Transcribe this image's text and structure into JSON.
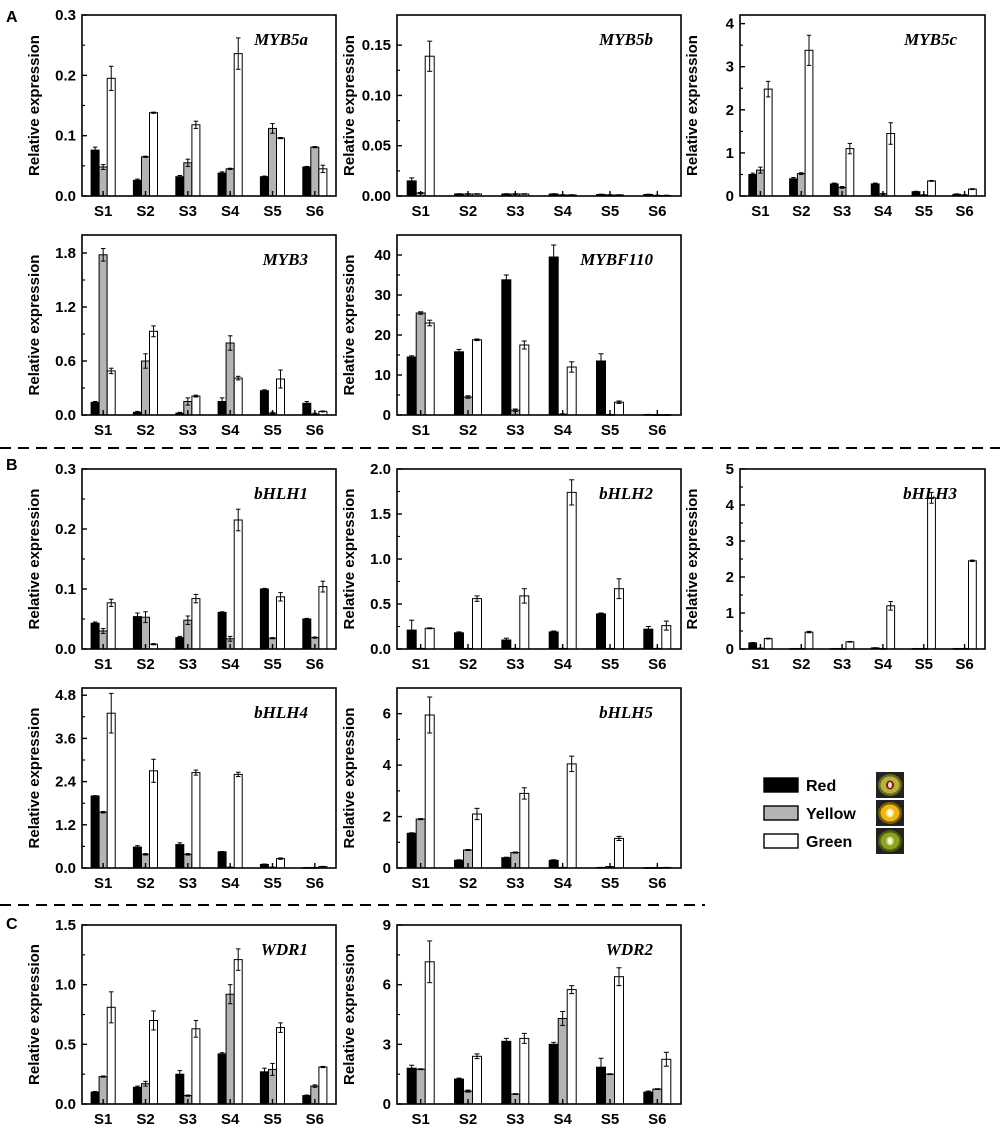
{
  "panel_labels": [
    "A",
    "B",
    "C"
  ],
  "y_axis_label": "Relative expression",
  "colors": {
    "red": "#000000",
    "yellow": "#b4b4b4",
    "green": "#ffffff",
    "axis": "#000000"
  },
  "legend": {
    "items": [
      {
        "label": "Red",
        "color": "#000000",
        "fruit_icon": "red-kiwi-slice-icon"
      },
      {
        "label": "Yellow",
        "color": "#b4b4b4",
        "fruit_icon": "yellow-kiwi-slice-icon"
      },
      {
        "label": "Green",
        "color": "#ffffff",
        "fruit_icon": "green-kiwi-slice-icon"
      }
    ]
  },
  "chart_data": [
    {
      "type": "bar",
      "title": "MYB5a",
      "categories": [
        "S1",
        "S2",
        "S3",
        "S4",
        "S5",
        "S6"
      ],
      "ylabel": "Relative expression",
      "ylim": [
        0,
        0.3
      ],
      "yticks": [
        0,
        0.1,
        0.2,
        0.3
      ],
      "ytick_labels": [
        "0.0",
        "0.1",
        "0.2",
        "0.3"
      ],
      "series": [
        {
          "name": "Red",
          "values": [
            0.076,
            0.026,
            0.032,
            0.038,
            0.032,
            0.048
          ],
          "errors": [
            0.005,
            0.002,
            0.002,
            0.002,
            0.001,
            0.001
          ]
        },
        {
          "name": "Yellow",
          "values": [
            0.048,
            0.065,
            0.055,
            0.045,
            0.112,
            0.081
          ],
          "errors": [
            0.004,
            0.001,
            0.006,
            0.001,
            0.008,
            0.001
          ]
        },
        {
          "name": "Green",
          "values": [
            0.195,
            0.138,
            0.118,
            0.236,
            0.096,
            0.045
          ],
          "errors": [
            0.02,
            0.001,
            0.006,
            0.026,
            0.001,
            0.006
          ]
        }
      ]
    },
    {
      "type": "bar",
      "title": "MYB5b",
      "categories": [
        "S1",
        "S2",
        "S3",
        "S4",
        "S5",
        "S6"
      ],
      "ylabel": "Relative expression",
      "ylim": [
        0,
        0.18
      ],
      "yticks": [
        0,
        0.05,
        0.1,
        0.15
      ],
      "ytick_labels": [
        "0.00",
        "0.05",
        "0.10",
        "0.15"
      ],
      "series": [
        {
          "name": "Red",
          "values": [
            0.015,
            0.002,
            0.002,
            0.002,
            0.0015,
            0.0015
          ],
          "errors": [
            0.003,
            0.0003,
            0.0003,
            0.0003,
            0.0003,
            0.0003
          ]
        },
        {
          "name": "Yellow",
          "values": [
            0.003,
            0.002,
            0.002,
            0.001,
            0.001,
            0.0005
          ],
          "errors": [
            0.0005,
            0.0003,
            0.0003,
            0.0003,
            0.0003,
            0.0003
          ]
        },
        {
          "name": "Green",
          "values": [
            0.139,
            0.002,
            0.002,
            0.001,
            0.001,
            0.0005
          ],
          "errors": [
            0.015,
            0.0003,
            0.0003,
            0.0003,
            0.0003,
            0.0003
          ]
        }
      ]
    },
    {
      "type": "bar",
      "title": "MYB5c",
      "categories": [
        "S1",
        "S2",
        "S3",
        "S4",
        "S5",
        "S6"
      ],
      "ylabel": "Relative expression",
      "ylim": [
        0,
        4.2
      ],
      "yticks": [
        0,
        1,
        2,
        3,
        4
      ],
      "ytick_labels": [
        "0",
        "1",
        "2",
        "3",
        "4"
      ],
      "series": [
        {
          "name": "Red",
          "values": [
            0.5,
            0.4,
            0.28,
            0.28,
            0.1,
            0.04
          ],
          "errors": [
            0.03,
            0.03,
            0.02,
            0.02,
            0.01,
            0.01
          ]
        },
        {
          "name": "Yellow",
          "values": [
            0.6,
            0.52,
            0.2,
            0.05,
            0.02,
            0.02
          ],
          "errors": [
            0.07,
            0.02,
            0.02,
            0.01,
            0.01,
            0.01
          ]
        },
        {
          "name": "Green",
          "values": [
            2.48,
            3.38,
            1.1,
            1.45,
            0.35,
            0.16
          ],
          "errors": [
            0.18,
            0.35,
            0.12,
            0.25,
            0.01,
            0.01
          ]
        }
      ]
    },
    {
      "type": "bar",
      "title": "MYB3",
      "categories": [
        "S1",
        "S2",
        "S3",
        "S4",
        "S5",
        "S6"
      ],
      "ylabel": "Relative expression",
      "ylim": [
        0,
        2.0
      ],
      "yticks": [
        0,
        0.6,
        1.2,
        1.8
      ],
      "ytick_labels": [
        "0.0",
        "0.6",
        "1.2",
        "1.8"
      ],
      "series": [
        {
          "name": "Red",
          "values": [
            0.14,
            0.03,
            0.02,
            0.15,
            0.27,
            0.13
          ],
          "errors": [
            0.01,
            0.01,
            0.01,
            0.04,
            0.01,
            0.02
          ]
        },
        {
          "name": "Yellow",
          "values": [
            1.78,
            0.6,
            0.15,
            0.8,
            0.02,
            0.01
          ],
          "errors": [
            0.07,
            0.08,
            0.04,
            0.08,
            0.01,
            0.01
          ]
        },
        {
          "name": "Green",
          "values": [
            0.49,
            0.93,
            0.21,
            0.41,
            0.4,
            0.04
          ],
          "errors": [
            0.03,
            0.06,
            0.01,
            0.02,
            0.1,
            0.005
          ]
        }
      ]
    },
    {
      "type": "bar",
      "title": "MYBF110",
      "categories": [
        "S1",
        "S2",
        "S3",
        "S4",
        "S5",
        "S6"
      ],
      "ylabel": "Relative expression",
      "ylim": [
        0,
        45
      ],
      "yticks": [
        0,
        10,
        20,
        30,
        40
      ],
      "ytick_labels": [
        "0",
        "10",
        "20",
        "30",
        "40"
      ],
      "series": [
        {
          "name": "Red",
          "values": [
            14.5,
            15.8,
            33.8,
            39.5,
            13.5,
            0.1
          ],
          "errors": [
            0.3,
            0.6,
            1.2,
            3.0,
            1.8,
            0.05
          ]
        },
        {
          "name": "Yellow",
          "values": [
            25.5,
            4.5,
            1.2,
            0.2,
            0.1,
            0.05
          ],
          "errors": [
            0.3,
            0.3,
            0.3,
            0.1,
            0.05,
            0.02
          ]
        },
        {
          "name": "Green",
          "values": [
            23.0,
            18.8,
            17.5,
            12.0,
            3.2,
            0.05
          ],
          "errors": [
            0.7,
            0.2,
            1.0,
            1.3,
            0.3,
            0.02
          ]
        }
      ]
    },
    {
      "type": "bar",
      "title": "bHLH1",
      "categories": [
        "S1",
        "S2",
        "S3",
        "S4",
        "S5",
        "S6"
      ],
      "ylabel": "Relative expression",
      "ylim": [
        0,
        0.3
      ],
      "yticks": [
        0,
        0.1,
        0.2,
        0.3
      ],
      "ytick_labels": [
        "0.0",
        "0.1",
        "0.2",
        "0.3"
      ],
      "series": [
        {
          "name": "Red",
          "values": [
            0.043,
            0.054,
            0.019,
            0.061,
            0.1,
            0.05
          ],
          "errors": [
            0.002,
            0.006,
            0.002,
            0.001,
            0.001,
            0.001
          ]
        },
        {
          "name": "Yellow",
          "values": [
            0.03,
            0.053,
            0.048,
            0.017,
            0.018,
            0.019
          ],
          "errors": [
            0.004,
            0.009,
            0.007,
            0.004,
            0.001,
            0.001
          ]
        },
        {
          "name": "Green",
          "values": [
            0.077,
            0.008,
            0.084,
            0.215,
            0.087,
            0.104
          ],
          "errors": [
            0.006,
            0.001,
            0.007,
            0.018,
            0.007,
            0.009
          ]
        }
      ]
    },
    {
      "type": "bar",
      "title": "bHLH2",
      "categories": [
        "S1",
        "S2",
        "S3",
        "S4",
        "S5",
        "S6"
      ],
      "ylabel": "Relative expression",
      "ylim": [
        0,
        2.0
      ],
      "yticks": [
        0,
        0.5,
        1.0,
        1.5,
        2.0
      ],
      "ytick_labels": [
        "0.0",
        "0.5",
        "1.0",
        "1.5",
        "2.0"
      ],
      "series": [
        {
          "name": "Red",
          "values": [
            0.21,
            0.18,
            0.1,
            0.19,
            0.39,
            0.22
          ],
          "errors": [
            0.11,
            0.01,
            0.02,
            0.01,
            0.01,
            0.03
          ]
        },
        {
          "name": "Yellow",
          "values": [
            0.005,
            0.005,
            0.005,
            0.005,
            0.005,
            0.005
          ],
          "errors": [
            0.002,
            0.002,
            0.002,
            0.002,
            0.002,
            0.002
          ]
        },
        {
          "name": "Green",
          "values": [
            0.23,
            0.56,
            0.59,
            1.74,
            0.67,
            0.26
          ],
          "errors": [
            0.005,
            0.03,
            0.08,
            0.14,
            0.11,
            0.05
          ]
        }
      ]
    },
    {
      "type": "bar",
      "title": "bHLH3",
      "categories": [
        "S1",
        "S2",
        "S3",
        "S4",
        "S5",
        "S6"
      ],
      "ylabel": "Relative expression",
      "ylim": [
        0,
        5.0
      ],
      "yticks": [
        0,
        1,
        2,
        3,
        4,
        5
      ],
      "ytick_labels": [
        "0",
        "1",
        "2",
        "3",
        "4",
        "5"
      ],
      "series": [
        {
          "name": "Red",
          "values": [
            0.17,
            0.01,
            0.01,
            0.03,
            0.01,
            0.01
          ],
          "errors": [
            0.01,
            0.005,
            0.005,
            0.005,
            0.005,
            0.005
          ]
        },
        {
          "name": "Yellow",
          "values": [
            0.02,
            0.01,
            0.01,
            0.01,
            0.01,
            0.01
          ],
          "errors": [
            0.005,
            0.005,
            0.005,
            0.005,
            0.005,
            0.005
          ]
        },
        {
          "name": "Green",
          "values": [
            0.29,
            0.47,
            0.2,
            1.2,
            4.2,
            2.45
          ],
          "errors": [
            0.01,
            0.02,
            0.01,
            0.12,
            0.15,
            0.02
          ]
        }
      ]
    },
    {
      "type": "bar",
      "title": "bHLH4",
      "categories": [
        "S1",
        "S2",
        "S3",
        "S4",
        "S5",
        "S6"
      ],
      "ylabel": "Relative expression",
      "ylim": [
        0,
        5.0
      ],
      "yticks": [
        0,
        1.2,
        2.4,
        3.6,
        4.8
      ],
      "ytick_labels": [
        "0.0",
        "1.2",
        "2.4",
        "3.6",
        "4.8"
      ],
      "series": [
        {
          "name": "Red",
          "values": [
            2.0,
            0.58,
            0.65,
            0.45,
            0.1,
            0.01
          ],
          "errors": [
            0.01,
            0.04,
            0.05,
            0.01,
            0.01,
            0.005
          ]
        },
        {
          "name": "Yellow",
          "values": [
            1.55,
            0.38,
            0.38,
            0.02,
            0.02,
            0.01
          ],
          "errors": [
            0.02,
            0.02,
            0.02,
            0.005,
            0.005,
            0.005
          ]
        },
        {
          "name": "Green",
          "values": [
            4.3,
            2.7,
            2.65,
            2.6,
            0.26,
            0.04
          ],
          "errors": [
            0.55,
            0.32,
            0.07,
            0.06,
            0.02,
            0.005
          ]
        }
      ]
    },
    {
      "type": "bar",
      "title": "bHLH5",
      "categories": [
        "S1",
        "S2",
        "S3",
        "S4",
        "S5",
        "S6"
      ],
      "ylabel": "Relative expression",
      "ylim": [
        0,
        7.0
      ],
      "yticks": [
        0,
        2,
        4,
        6
      ],
      "ytick_labels": [
        "0",
        "2",
        "4",
        "6"
      ],
      "series": [
        {
          "name": "Red",
          "values": [
            1.35,
            0.3,
            0.4,
            0.3,
            0.02,
            0.01
          ],
          "errors": [
            0.02,
            0.02,
            0.02,
            0.02,
            0.005,
            0.005
          ]
        },
        {
          "name": "Yellow",
          "values": [
            1.9,
            0.7,
            0.6,
            0.02,
            0.05,
            0.01
          ],
          "errors": [
            0.02,
            0.02,
            0.02,
            0.005,
            0.005,
            0.005
          ]
        },
        {
          "name": "Green",
          "values": [
            5.95,
            2.1,
            2.9,
            4.05,
            1.15,
            0.02
          ],
          "errors": [
            0.7,
            0.22,
            0.22,
            0.3,
            0.08,
            0.005
          ]
        }
      ]
    },
    {
      "type": "bar",
      "title": "WDR1",
      "categories": [
        "S1",
        "S2",
        "S3",
        "S4",
        "S5",
        "S6"
      ],
      "ylabel": "Relative expression",
      "ylim": [
        0,
        1.5
      ],
      "yticks": [
        0,
        0.5,
        1.0,
        1.5
      ],
      "ytick_labels": [
        "0.0",
        "0.5",
        "1.0",
        "1.5"
      ],
      "series": [
        {
          "name": "Red",
          "values": [
            0.1,
            0.14,
            0.25,
            0.42,
            0.27,
            0.07
          ],
          "errors": [
            0.005,
            0.01,
            0.03,
            0.01,
            0.03,
            0.005
          ]
        },
        {
          "name": "Yellow",
          "values": [
            0.23,
            0.17,
            0.07,
            0.92,
            0.29,
            0.15
          ],
          "errors": [
            0.005,
            0.02,
            0.005,
            0.08,
            0.05,
            0.01
          ]
        },
        {
          "name": "Green",
          "values": [
            0.81,
            0.7,
            0.63,
            1.21,
            0.64,
            0.31
          ],
          "errors": [
            0.13,
            0.08,
            0.07,
            0.09,
            0.04,
            0.005
          ]
        }
      ]
    },
    {
      "type": "bar",
      "title": "WDR2",
      "categories": [
        "S1",
        "S2",
        "S3",
        "S4",
        "S5",
        "S6"
      ],
      "ylabel": "Relative expression",
      "ylim": [
        0,
        9.0
      ],
      "yticks": [
        0,
        3,
        6,
        9
      ],
      "ytick_labels": [
        "0",
        "3",
        "6",
        "9"
      ],
      "series": [
        {
          "name": "Red",
          "values": [
            1.8,
            1.25,
            3.15,
            3.0,
            1.85,
            0.6
          ],
          "errors": [
            0.15,
            0.05,
            0.15,
            0.1,
            0.45,
            0.05
          ]
        },
        {
          "name": "Yellow",
          "values": [
            1.75,
            0.65,
            0.5,
            4.3,
            1.5,
            0.75
          ],
          "errors": [
            0.02,
            0.05,
            0.02,
            0.35,
            0.02,
            0.02
          ]
        },
        {
          "name": "Green",
          "values": [
            7.15,
            2.4,
            3.3,
            5.75,
            6.4,
            2.25
          ],
          "errors": [
            1.05,
            0.12,
            0.25,
            0.2,
            0.45,
            0.35
          ]
        }
      ]
    }
  ]
}
